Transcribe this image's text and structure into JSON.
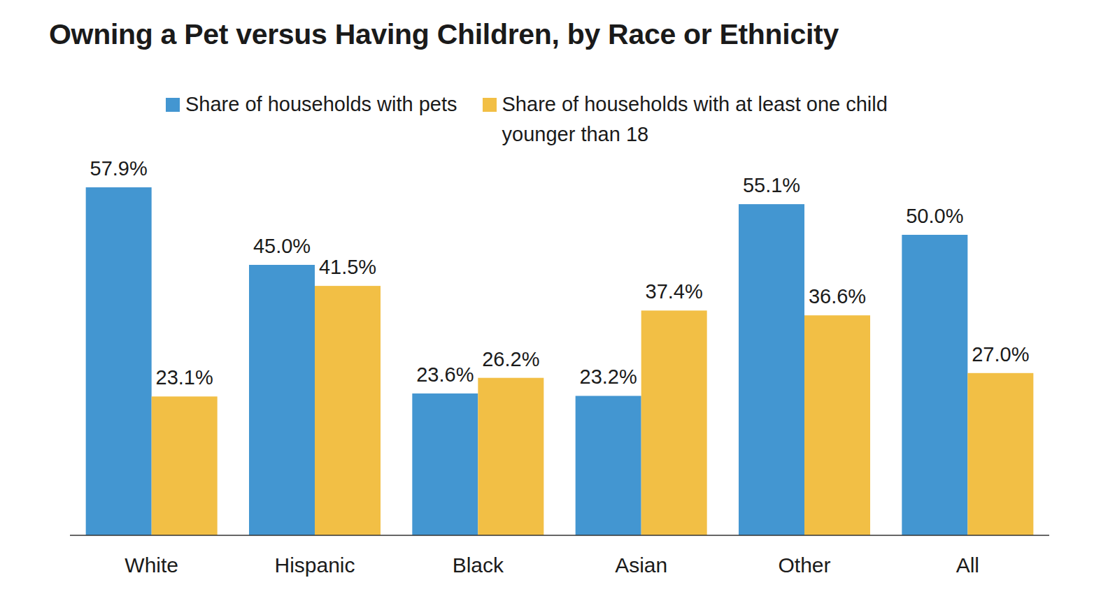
{
  "chart_data": {
    "type": "bar",
    "title": "Owning a Pet versus Having Children, by Race or Ethnicity",
    "categories": [
      "White",
      "Hispanic",
      "Black",
      "Asian",
      "Other",
      "All"
    ],
    "series": [
      {
        "name": "Share of households with pets",
        "color": "#4396d1",
        "values": [
          57.9,
          45.0,
          23.6,
          23.2,
          55.1,
          50.0
        ],
        "value_labels": [
          "57.9%",
          "45.0%",
          "23.6%",
          "23.2%",
          "55.1%",
          "50.0%"
        ]
      },
      {
        "name": "Share of households with at least one child younger than 18",
        "color": "#f2bf45",
        "values": [
          23.1,
          41.5,
          26.2,
          37.4,
          36.6,
          27.0
        ],
        "value_labels": [
          "23.1%",
          "41.5%",
          "26.2%",
          "37.4%",
          "36.6%",
          "27.0%"
        ]
      }
    ],
    "ylim": [
      0,
      60
    ],
    "tick_labels": "x",
    "data_labels": true,
    "grid": false,
    "legend": "top"
  }
}
